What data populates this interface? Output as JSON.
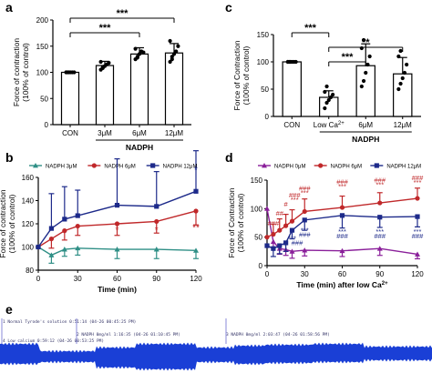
{
  "colors": {
    "black": "#000000",
    "teal": "#2f8f86",
    "red": "#c0282a",
    "navy": "#1d2a8a",
    "purple": "#8a1f9a",
    "blue_trace": "#1a3fd6",
    "bar_fill": "#ffffff"
  },
  "panels": {
    "a": "a",
    "b": "b",
    "c": "c",
    "d": "d",
    "e": "e"
  },
  "chart_data": [
    {
      "id": "a",
      "type": "bar",
      "ylabel_1": "Force of contraction",
      "ylabel_2": "(100% of control)",
      "ylim": [
        0,
        200
      ],
      "yticks": [
        "0",
        "50",
        "100",
        "150",
        "200"
      ],
      "categories": [
        "CON",
        "3μM",
        "6μM",
        "12μM"
      ],
      "values": [
        100,
        113,
        135,
        137
      ],
      "errors": [
        0,
        8,
        12,
        18
      ],
      "points": [
        [
          100,
          100,
          100,
          100,
          100,
          100,
          100
        ],
        [
          105,
          110,
          112,
          115,
          118,
          120,
          108
        ],
        [
          125,
          130,
          135,
          140,
          138,
          145,
          128
        ],
        [
          120,
          125,
          135,
          140,
          150,
          160,
          130
        ]
      ],
      "group_label": "NADPH",
      "significance": [
        {
          "from": 0,
          "to": 3,
          "label": "***"
        },
        {
          "from": 0,
          "to": 2,
          "label": "***"
        }
      ]
    },
    {
      "id": "c",
      "type": "bar",
      "ylabel_1": "Force of Contraction",
      "ylabel_2": "(100% of control)",
      "ylim": [
        0,
        150
      ],
      "yticks": [
        "0",
        "50",
        "100",
        "150"
      ],
      "categories": [
        "CON",
        "Low Ca",
        "6μM",
        "12μM"
      ],
      "superscript": "2+",
      "values": [
        100,
        35,
        93,
        78
      ],
      "errors": [
        0,
        12,
        40,
        30
      ],
      "points": [
        [
          100,
          100,
          100,
          100,
          100,
          100,
          100
        ],
        [
          15,
          25,
          30,
          35,
          40,
          45,
          55
        ],
        [
          55,
          65,
          80,
          95,
          110,
          125,
          140
        ],
        [
          50,
          60,
          70,
          80,
          95,
          110,
          120
        ]
      ],
      "group_label": "NADPH",
      "significance": [
        {
          "from": 0,
          "to": 1,
          "label": "***"
        },
        {
          "from": 1,
          "to": 3,
          "label": "**"
        },
        {
          "from": 1,
          "to": 2,
          "label": "***"
        }
      ]
    },
    {
      "id": "b",
      "type": "line",
      "xlabel": "Time (min)",
      "ylabel_1": "Force of contraction",
      "ylabel_2": "(100% of control)",
      "xlim": [
        0,
        120
      ],
      "ylim": [
        80,
        160
      ],
      "xticks": [
        "0",
        "30",
        "60",
        "90",
        "120"
      ],
      "yticks": [
        "80",
        "100",
        "120",
        "140",
        "160"
      ],
      "x": [
        0,
        10,
        20,
        30,
        60,
        90,
        120
      ],
      "series": [
        {
          "name": "NADPH 3μM",
          "values": [
            100,
            93,
            98,
            99,
            98,
            98,
            97
          ],
          "errors": [
            0,
            7,
            6,
            6,
            8,
            8,
            7
          ],
          "err_dir": -1,
          "marker": "triangle",
          "color_key": "teal"
        },
        {
          "name": "NADPH 6μM",
          "values": [
            100,
            107,
            114,
            118,
            120,
            122,
            131
          ],
          "errors": [
            0,
            8,
            8,
            8,
            10,
            10,
            12
          ],
          "err_dir": -1,
          "marker": "circle",
          "color_key": "red"
        },
        {
          "name": "NADPH 12μM",
          "values": [
            100,
            116,
            124,
            127,
            136,
            135,
            148
          ],
          "errors": [
            0,
            30,
            28,
            22,
            40,
            30,
            35
          ],
          "err_dir": 1,
          "marker": "square",
          "color_key": "navy"
        }
      ],
      "stars": [
        {
          "x": 60,
          "y": 112,
          "label": "*",
          "color_key": "red"
        },
        {
          "x": 90,
          "y": 112,
          "label": "*",
          "color_key": "red"
        },
        {
          "x": 120,
          "y": 114,
          "label": "**",
          "color_key": "red"
        },
        {
          "x": 120,
          "y": 164,
          "label": "*",
          "color_key": "navy"
        }
      ]
    },
    {
      "id": "d",
      "type": "line",
      "xlabel": "Time (min) after low Ca",
      "superscript": "2+",
      "ylabel_1": "Force of Contraction",
      "ylabel_2": "(100% of control)",
      "xlim": [
        0,
        120
      ],
      "ylim": [
        0,
        150
      ],
      "xticks": [
        "0",
        "30",
        "60",
        "90",
        "120"
      ],
      "yticks": [
        "0",
        "50",
        "100",
        "150"
      ],
      "x": [
        0,
        5,
        10,
        15,
        20,
        30,
        60,
        90,
        120
      ],
      "series": [
        {
          "name": "NADPH 0μM",
          "values": [
            100,
            42,
            30,
            28,
            25,
            27,
            26,
            30,
            20
          ],
          "errors": [
            0,
            10,
            10,
            10,
            12,
            10,
            10,
            12,
            8
          ],
          "err_dir": -1,
          "marker": "triangle",
          "color_key": "purple"
        },
        {
          "name": "NADPH 6μM",
          "values": [
            50,
            55,
            62,
            70,
            78,
            95,
            102,
            110,
            118
          ],
          "errors": [
            0,
            18,
            20,
            20,
            20,
            22,
            20,
            18,
            18
          ],
          "err_dir": 1,
          "marker": "circle",
          "color_key": "red"
        },
        {
          "name": "NADPH 12μM",
          "values": [
            35,
            30,
            35,
            40,
            62,
            80,
            88,
            85,
            86
          ],
          "errors": [
            0,
            14,
            14,
            15,
            15,
            18,
            22,
            18,
            18
          ],
          "err_dir": -1,
          "marker": "square",
          "color_key": "navy"
        }
      ],
      "stars": [
        {
          "x": 5,
          "y": 70,
          "label": "###",
          "color_key": "red"
        },
        {
          "x": 10,
          "y": 88,
          "label": "##",
          "color_key": "red"
        },
        {
          "x": 15,
          "y": 104,
          "label": "#",
          "color_key": "red"
        },
        {
          "x": 22,
          "y": 120,
          "label": "###",
          "color_key": "red"
        },
        {
          "x": 22,
          "y": 112,
          "label": "***",
          "color_key": "red"
        },
        {
          "x": 30,
          "y": 132,
          "label": "###",
          "color_key": "red"
        },
        {
          "x": 30,
          "y": 124,
          "label": "***",
          "color_key": "red"
        },
        {
          "x": 60,
          "y": 143,
          "label": "###",
          "color_key": "red"
        },
        {
          "x": 60,
          "y": 135,
          "label": "***",
          "color_key": "red"
        },
        {
          "x": 90,
          "y": 146,
          "label": "###",
          "color_key": "red"
        },
        {
          "x": 90,
          "y": 138,
          "label": "***",
          "color_key": "red"
        },
        {
          "x": 120,
          "y": 150,
          "label": "###",
          "color_key": "red"
        },
        {
          "x": 120,
          "y": 142,
          "label": "***",
          "color_key": "red"
        },
        {
          "x": 20,
          "y": 44,
          "label": "***",
          "color_key": "navy"
        },
        {
          "x": 24,
          "y": 36,
          "label": "###",
          "color_key": "navy"
        },
        {
          "x": 30,
          "y": 58,
          "label": "***",
          "color_key": "navy"
        },
        {
          "x": 30,
          "y": 50,
          "label": "###",
          "color_key": "navy"
        },
        {
          "x": 60,
          "y": 56,
          "label": "***",
          "color_key": "navy"
        },
        {
          "x": 60,
          "y": 48,
          "label": "###",
          "color_key": "navy"
        },
        {
          "x": 90,
          "y": 56,
          "label": "***",
          "color_key": "navy"
        },
        {
          "x": 90,
          "y": 48,
          "label": "###",
          "color_key": "navy"
        },
        {
          "x": 120,
          "y": 56,
          "label": "***",
          "color_key": "navy"
        },
        {
          "x": 120,
          "y": 48,
          "label": "###",
          "color_key": "navy"
        }
      ]
    }
  ],
  "trace": {
    "labels": [
      "1 Normal Tyrode's solution  0:51:14   (04-26 00:45:25 PM)",
      "2 NADPH 0mg/ml    1:16:35   (04-26 01:10:45 PM)",
      "3 NADPH 0mg/ml    2:03:47   (04-26 01:58:56 PM)",
      "4 Low calcium  0:59:12  (04-26 00:53:25 PM)"
    ]
  }
}
